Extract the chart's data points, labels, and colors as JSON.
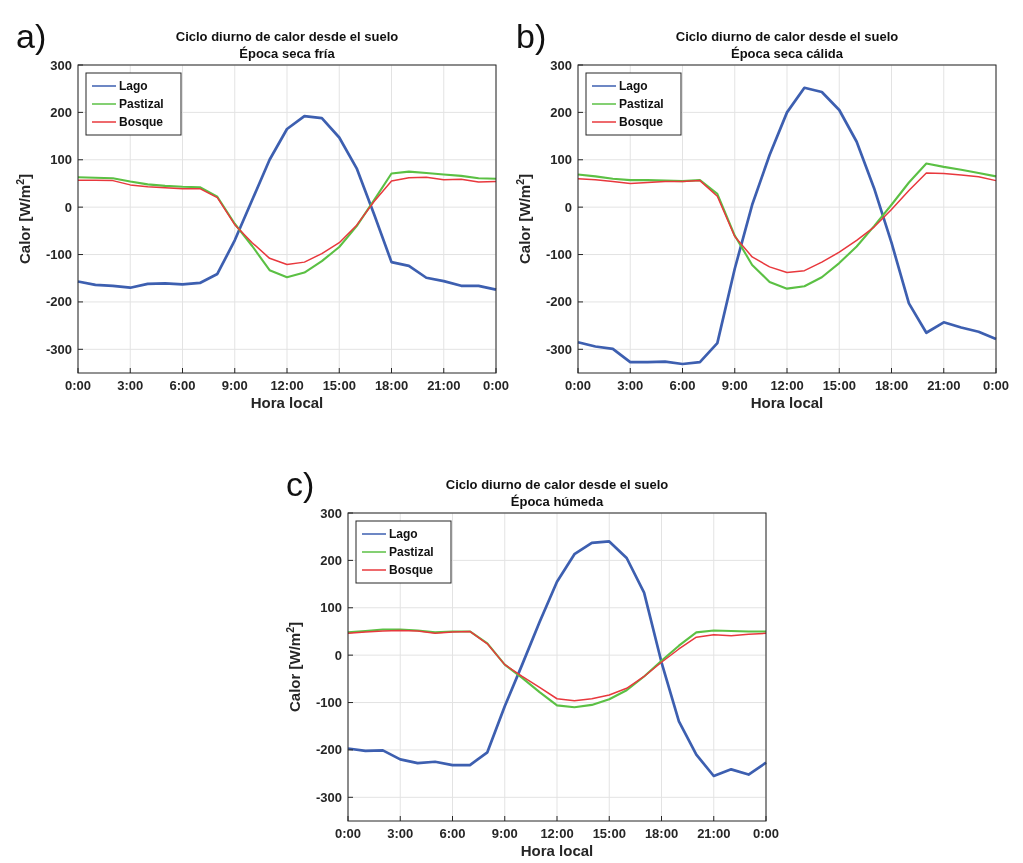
{
  "chart_data": [
    {
      "type": "line",
      "title": "Ciclo diurno de calor desde el suelo",
      "subtitle": "Época seca fría",
      "annotations": [
        "a)"
      ],
      "xlabel": "Hora local",
      "ylabel": "Calor [W/m$^{2}$]",
      "x": [
        0,
        1,
        2,
        3,
        4,
        5,
        6,
        7,
        8,
        9,
        10,
        11,
        12,
        13,
        14,
        15,
        16,
        17,
        18,
        19,
        20,
        21,
        22,
        23,
        24
      ],
      "xlim": [
        0,
        24
      ],
      "xticks": [
        {
          "value": 0,
          "label": "0:00"
        },
        {
          "value": 3,
          "label": "3:00"
        },
        {
          "value": 6,
          "label": "6:00"
        },
        {
          "value": 9,
          "label": "9:00"
        },
        {
          "value": 12,
          "label": "12:00"
        },
        {
          "value": 15,
          "label": "15:00"
        },
        {
          "value": 18,
          "label": "18:00"
        },
        {
          "value": 21,
          "label": "21:00"
        },
        {
          "value": 24,
          "label": "0:00"
        }
      ],
      "ylim": [
        -350,
        300
      ],
      "yticks": [
        -300,
        -200,
        -100,
        0,
        100,
        200,
        300
      ],
      "grid": true,
      "legend": "top left",
      "line_style": "solid",
      "series": [
        {
          "name": "Lago",
          "color": "#3d5fb0",
          "values": [
            -157,
            -164,
            -166,
            -170,
            -162,
            -161,
            -163,
            -160,
            -141,
            -70,
            15,
            100,
            165,
            192,
            188,
            147,
            82,
            -15,
            -116,
            -124,
            -149,
            -156,
            -166,
            -166,
            -174
          ]
        },
        {
          "name": "Pastizal",
          "color": "#5bc044",
          "values": [
            63,
            62,
            61,
            54,
            48,
            45,
            43,
            42,
            22,
            -35,
            -82,
            -133,
            -148,
            -138,
            -114,
            -84,
            -40,
            15,
            71,
            75,
            72,
            69,
            66,
            61,
            60
          ]
        },
        {
          "name": "Bosque",
          "color": "#e8383d",
          "values": [
            57,
            57,
            56,
            47,
            43,
            41,
            39,
            39,
            20,
            -37,
            -75,
            -108,
            -121,
            -116,
            -98,
            -75,
            -38,
            12,
            55,
            62,
            63,
            58,
            59,
            53,
            54
          ]
        }
      ]
    },
    {
      "type": "line",
      "title": "Ciclo diurno de calor desde el suelo",
      "subtitle": "Época seca cálida",
      "annotations": [
        "b)"
      ],
      "xlabel": "Hora local",
      "ylabel": "Calor [W/m$^{2}$]",
      "x": [
        0,
        1,
        2,
        3,
        4,
        5,
        6,
        7,
        8,
        9,
        10,
        11,
        12,
        13,
        14,
        15,
        16,
        17,
        18,
        19,
        20,
        21,
        22,
        23,
        24
      ],
      "xlim": [
        0,
        24
      ],
      "xticks": [
        {
          "value": 0,
          "label": "0:00"
        },
        {
          "value": 3,
          "label": "3:00"
        },
        {
          "value": 6,
          "label": "6:00"
        },
        {
          "value": 9,
          "label": "9:00"
        },
        {
          "value": 12,
          "label": "12:00"
        },
        {
          "value": 15,
          "label": "15:00"
        },
        {
          "value": 18,
          "label": "18:00"
        },
        {
          "value": 21,
          "label": "21:00"
        },
        {
          "value": 24,
          "label": "0:00"
        }
      ],
      "ylim": [
        -350,
        300
      ],
      "yticks": [
        -300,
        -200,
        -100,
        0,
        100,
        200,
        300
      ],
      "grid": true,
      "legend": "top left",
      "line_style": "solid",
      "series": [
        {
          "name": "Lago",
          "color": "#3d5fb0",
          "values": [
            -285,
            -294,
            -299,
            -327,
            -327,
            -326,
            -331,
            -327,
            -287,
            -130,
            5,
            110,
            200,
            252,
            243,
            205,
            138,
            40,
            -75,
            -203,
            -265,
            -243,
            -254,
            -263,
            -278
          ]
        },
        {
          "name": "Pastizal",
          "color": "#5bc044",
          "values": [
            69,
            65,
            60,
            57,
            57,
            56,
            55,
            57,
            28,
            -60,
            -122,
            -158,
            -172,
            -167,
            -148,
            -118,
            -83,
            -40,
            5,
            52,
            92,
            85,
            79,
            72,
            65
          ]
        },
        {
          "name": "Bosque",
          "color": "#e8383d",
          "values": [
            60,
            58,
            54,
            50,
            52,
            54,
            54,
            56,
            23,
            -62,
            -105,
            -126,
            -138,
            -134,
            -116,
            -95,
            -70,
            -42,
            -5,
            35,
            72,
            71,
            68,
            64,
            56
          ]
        }
      ]
    },
    {
      "type": "line",
      "title": "Ciclo diurno de calor desde el suelo",
      "subtitle": "Época húmeda",
      "annotations": [
        "c)"
      ],
      "xlabel": "Hora local",
      "ylabel": "Calor [W/m$^{2}$]",
      "x": [
        0,
        1,
        2,
        3,
        4,
        5,
        6,
        7,
        8,
        9,
        10,
        11,
        12,
        13,
        14,
        15,
        16,
        17,
        18,
        19,
        20,
        21,
        22,
        23,
        24
      ],
      "xlim": [
        0,
        24
      ],
      "xticks": [
        {
          "value": 0,
          "label": "0:00"
        },
        {
          "value": 3,
          "label": "3:00"
        },
        {
          "value": 6,
          "label": "6:00"
        },
        {
          "value": 9,
          "label": "9:00"
        },
        {
          "value": 12,
          "label": "12:00"
        },
        {
          "value": 15,
          "label": "15:00"
        },
        {
          "value": 18,
          "label": "18:00"
        },
        {
          "value": 21,
          "label": "21:00"
        },
        {
          "value": 24,
          "label": "0:00"
        }
      ],
      "ylim": [
        -350,
        300
      ],
      "yticks": [
        -300,
        -200,
        -100,
        0,
        100,
        200,
        300
      ],
      "grid": true,
      "legend": "top left",
      "line_style": "solid",
      "series": [
        {
          "name": "Lago",
          "color": "#3d5fb0",
          "values": [
            -197,
            -202,
            -201,
            -220,
            -228,
            -225,
            -232,
            -232,
            -205,
            -108,
            -20,
            70,
            155,
            213,
            237,
            240,
            205,
            132,
            -15,
            -140,
            -210,
            -255,
            -241,
            -252,
            -227
          ]
        },
        {
          "name": "Pastizal",
          "color": "#5bc044",
          "values": [
            48,
            51,
            54,
            54,
            52,
            48,
            50,
            50,
            25,
            -20,
            -48,
            -78,
            -106,
            -110,
            -105,
            -93,
            -74,
            -45,
            -12,
            20,
            48,
            52,
            51,
            50,
            50
          ]
        },
        {
          "name": "Bosque",
          "color": "#e8383d",
          "values": [
            46,
            49,
            51,
            52,
            51,
            46,
            49,
            50,
            24,
            -20,
            -45,
            -68,
            -92,
            -96,
            -92,
            -84,
            -70,
            -45,
            -15,
            13,
            38,
            43,
            41,
            44,
            46
          ]
        }
      ]
    }
  ]
}
